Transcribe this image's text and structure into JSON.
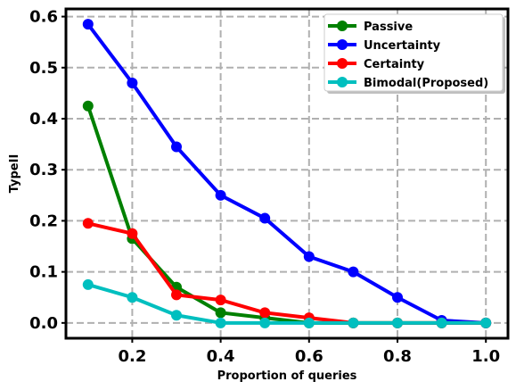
{
  "chart_data": {
    "type": "line",
    "xlabel": "Proportion of queries",
    "ylabel": "TypeII",
    "xlim": [
      0.05,
      1.05
    ],
    "ylim": [
      -0.03,
      0.615
    ],
    "xticks": [
      "0.2",
      "0.4",
      "0.6",
      "0.8",
      "1.0"
    ],
    "yticks": [
      "0.0",
      "0.1",
      "0.2",
      "0.3",
      "0.4",
      "0.5",
      "0.6"
    ],
    "grid": true,
    "legend_position": "top-right",
    "x": [
      0.1,
      0.2,
      0.3,
      0.4,
      0.5,
      0.6,
      0.7,
      0.8,
      0.9,
      1.0
    ],
    "series": [
      {
        "name": "Passive",
        "color": "#008000",
        "values": [
          0.425,
          0.165,
          0.07,
          0.02,
          0.01,
          0.0,
          0.0,
          0.0,
          0.0,
          0.0
        ]
      },
      {
        "name": "Uncertainty",
        "color": "#0000ff",
        "values": [
          0.585,
          0.47,
          0.345,
          0.25,
          0.205,
          0.13,
          0.1,
          0.05,
          0.005,
          0.0
        ]
      },
      {
        "name": "Certainty",
        "color": "#ff0000",
        "values": [
          0.195,
          0.175,
          0.055,
          0.045,
          0.02,
          0.01,
          0.0,
          0.0,
          0.0,
          0.0
        ]
      },
      {
        "name": "Bimodal(Proposed)",
        "color": "#00bfbf",
        "values": [
          0.075,
          0.05,
          0.015,
          0.0,
          0.0,
          0.0,
          0.0,
          0.0,
          0.0,
          0.0
        ]
      }
    ]
  }
}
